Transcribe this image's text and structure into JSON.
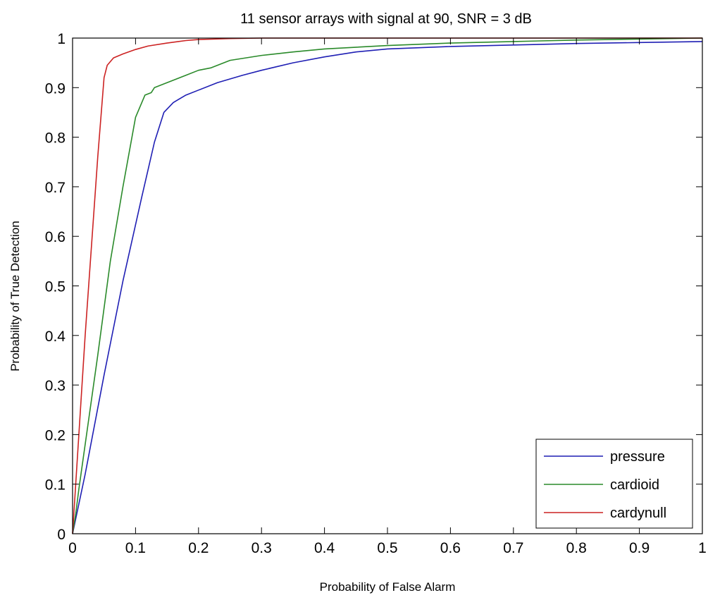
{
  "chart_data": {
    "type": "line",
    "title": "11 sensor arrays with signal at 90, SNR = 3 dB",
    "xlabel": "Probability of False Alarm",
    "ylabel": "Probability of True Detection",
    "xlim": [
      0,
      1
    ],
    "ylim": [
      0,
      1
    ],
    "xticks": [
      "0",
      "0.1",
      "0.2",
      "0.3",
      "0.4",
      "0.5",
      "0.6",
      "0.7",
      "0.8",
      "0.9",
      "1"
    ],
    "yticks": [
      "0",
      "0.1",
      "0.2",
      "0.3",
      "0.4",
      "0.5",
      "0.6",
      "0.7",
      "0.8",
      "0.9",
      "1"
    ],
    "grid": false,
    "legend_position": "bottom-right",
    "series": [
      {
        "name": "pressure",
        "color": "#1f1fb4",
        "x": [
          0,
          0.005,
          0.01,
          0.02,
          0.05,
          0.08,
          0.11,
          0.13,
          0.145,
          0.16,
          0.18,
          0.2,
          0.23,
          0.27,
          0.3,
          0.35,
          0.4,
          0.45,
          0.5,
          0.6,
          0.7,
          0.8,
          0.9,
          1.0
        ],
        "y": [
          0,
          0.03,
          0.06,
          0.12,
          0.32,
          0.51,
          0.68,
          0.79,
          0.85,
          0.87,
          0.885,
          0.895,
          0.91,
          0.925,
          0.935,
          0.95,
          0.962,
          0.972,
          0.978,
          0.983,
          0.986,
          0.989,
          0.991,
          0.993
        ]
      },
      {
        "name": "cardioid",
        "color": "#2a8a2a",
        "x": [
          0,
          0.005,
          0.01,
          0.02,
          0.04,
          0.06,
          0.08,
          0.1,
          0.115,
          0.125,
          0.13,
          0.15,
          0.18,
          0.2,
          0.22,
          0.25,
          0.3,
          0.35,
          0.4,
          0.5,
          0.6,
          0.7,
          0.8,
          0.9,
          1.0
        ],
        "y": [
          0,
          0.04,
          0.09,
          0.18,
          0.36,
          0.55,
          0.7,
          0.84,
          0.885,
          0.89,
          0.9,
          0.91,
          0.925,
          0.935,
          0.94,
          0.955,
          0.965,
          0.972,
          0.978,
          0.985,
          0.99,
          0.993,
          0.996,
          0.998,
          1.0
        ]
      },
      {
        "name": "cardynull",
        "color": "#cc2222",
        "x": [
          0,
          0.005,
          0.01,
          0.02,
          0.03,
          0.04,
          0.05,
          0.055,
          0.065,
          0.08,
          0.1,
          0.12,
          0.15,
          0.18,
          0.2,
          0.25,
          0.3,
          0.5,
          0.7,
          1.0
        ],
        "y": [
          0,
          0.1,
          0.2,
          0.4,
          0.58,
          0.76,
          0.92,
          0.945,
          0.96,
          0.968,
          0.977,
          0.984,
          0.99,
          0.995,
          0.997,
          0.999,
          1.0,
          1.0,
          1.0,
          1.0
        ]
      }
    ]
  }
}
